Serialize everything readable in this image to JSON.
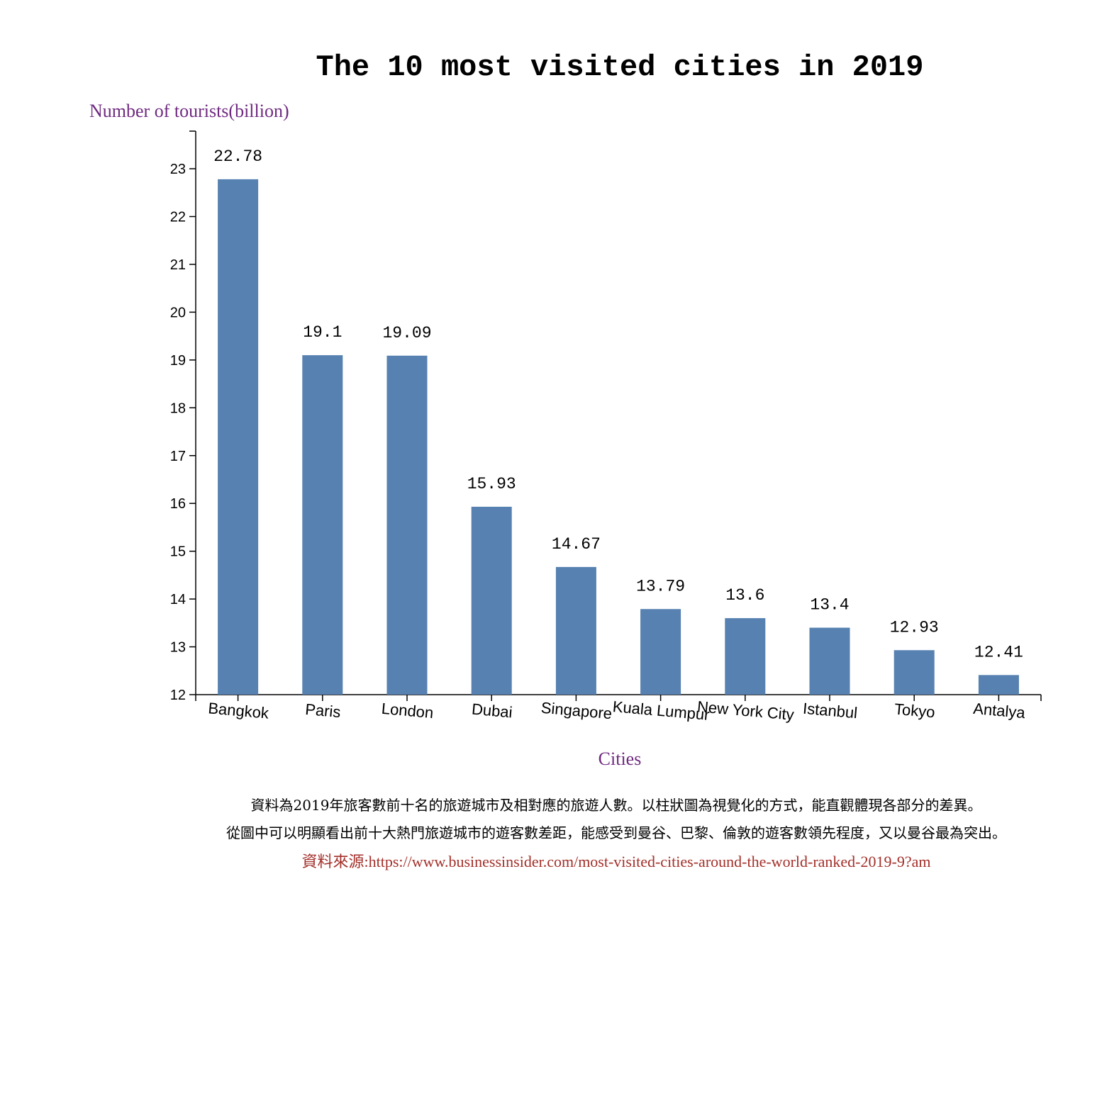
{
  "colors": {
    "bar": "#5681b0",
    "axis_title": "#6f2a80",
    "source": "#a3302a"
  },
  "chart_data": {
    "type": "bar",
    "title": "The 10 most visited cities in 2019",
    "xlabel": "Cities",
    "ylabel": "Number of tourists(billion)",
    "categories": [
      "Bangkok",
      "Paris",
      "London",
      "Dubai",
      "Singapore",
      "Kuala Lumpur",
      "New York City",
      "Istanbul",
      "Tokyo",
      "Antalya"
    ],
    "values": [
      22.78,
      19.1,
      19.09,
      15.93,
      14.67,
      13.79,
      13.6,
      13.4,
      12.93,
      12.41
    ],
    "value_labels": [
      "22.78",
      "19.1",
      "19.09",
      "15.93",
      "14.67",
      "13.79",
      "13.6",
      "13.4",
      "12.93",
      "12.41"
    ],
    "yticks": [
      "12",
      "13",
      "14",
      "15",
      "16",
      "17",
      "18",
      "19",
      "20",
      "21",
      "22",
      "23"
    ],
    "ylim": [
      12,
      23.8
    ],
    "grid": false,
    "legend": "none"
  },
  "caption": {
    "line1": "資料為2019年旅客數前十名的旅遊城市及相對應的旅遊人數。以柱狀圖為視覺化的方式，能直觀體現各部分的差異。",
    "line2": "從圖中可以明顯看出前十大熱門旅遊城市的遊客數差距，能感受到曼谷、巴黎、倫敦的遊客數領先程度，又以曼谷最為突出。",
    "source": "資料來源:https://www.businessinsider.com/most-visited-cities-around-the-world-ranked-2019-9?am"
  }
}
